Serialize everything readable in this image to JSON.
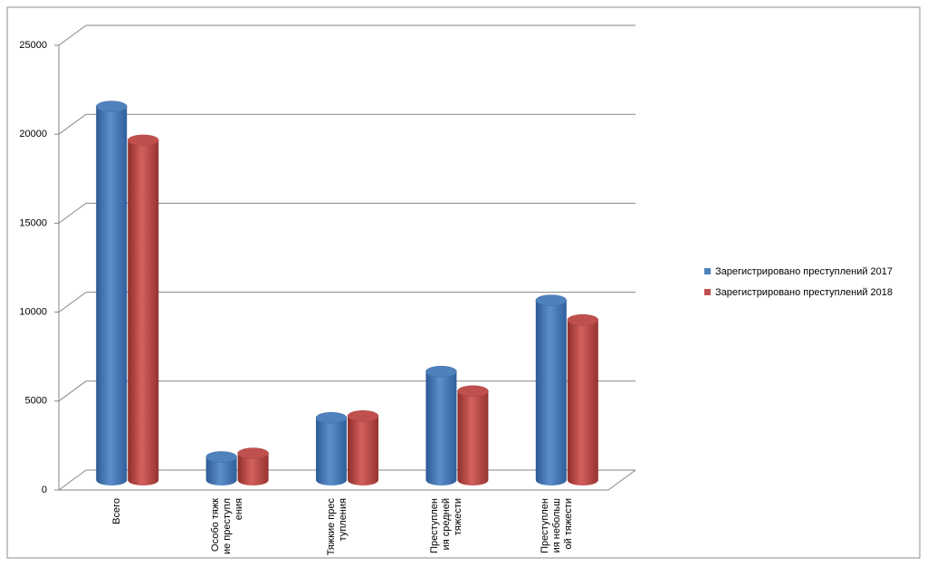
{
  "chart_data": {
    "type": "bar3d",
    "categories": [
      "Всего",
      "Особо тяжкие преступления",
      "Тяжкие преступления",
      "Преступления средней тяжести",
      "Преступления небольшой тяжести"
    ],
    "series": [
      {
        "name": "Зарегистрировано преступлений 2017",
        "color": "#4f81bd",
        "values": [
          21000,
          1300,
          3500,
          6100,
          10100
        ]
      },
      {
        "name": "Зарегистрировано преступлений 2018",
        "color": "#c0504d",
        "values": [
          19100,
          1500,
          3600,
          5000,
          9000
        ]
      }
    ],
    "ylim": [
      0,
      25000
    ],
    "yticks": [
      0,
      5000,
      10000,
      15000,
      20000,
      25000
    ],
    "grid": true,
    "legend": "right"
  }
}
